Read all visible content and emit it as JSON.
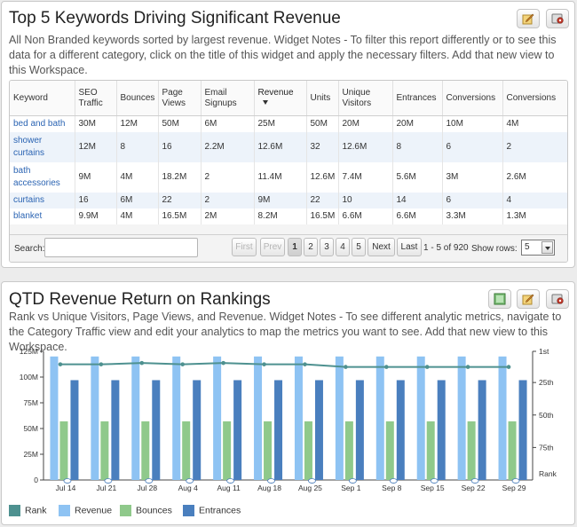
{
  "widget1": {
    "title": "Top 5 Keywords Driving Significant Revenue",
    "description": "All Non Branded keywords sorted by largest revenue. Widget Notes - To filter this report differently or to see this data for a different category, click on the title of this widget and apply the necessary filters. Add that new view to this Workspace.",
    "icons": [
      "edit-widget-icon",
      "settings-gear-icon"
    ],
    "columns": [
      "Keyword",
      "SEO Traffic",
      "Bounces",
      "Page Views",
      "Email Signups",
      "Revenue",
      "Units",
      "Unique Visitors",
      "Entrances",
      "Conversions",
      "Conversions"
    ],
    "sorted_column": "Revenue",
    "rows": [
      [
        "bed and bath",
        "30M",
        "12M",
        "50M",
        "6M",
        "25M",
        "50M",
        "20M",
        "20M",
        "10M",
        "4M"
      ],
      [
        "shower curtains",
        "12M",
        "8",
        "16",
        "2.2M",
        "12.6M",
        "32",
        "12.6M",
        "8",
        "6",
        "2"
      ],
      [
        "bath accessories",
        "9M",
        "4M",
        "18.2M",
        "2",
        "11.4M",
        "12.6M",
        "7.4M",
        "5.6M",
        "3M",
        "2.6M"
      ],
      [
        "curtains",
        "16",
        "6M",
        "22",
        "2",
        "9M",
        "22",
        "10",
        "14",
        "6",
        "4"
      ],
      [
        "blanket",
        "9.9M",
        "4M",
        "16.5M",
        "2M",
        "8.2M",
        "16.5M",
        "6.6M",
        "6.6M",
        "3.3M",
        "1.3M"
      ]
    ],
    "search_label": "Search:",
    "search_value": "",
    "pager": {
      "first": "First",
      "prev": "Prev",
      "pages": [
        "1",
        "2",
        "3",
        "4",
        "5"
      ],
      "current_page": "1",
      "next": "Next",
      "last": "Last",
      "info": "1 - 5 of 920",
      "show_rows_label": "Show rows:",
      "show_rows_value": "5"
    }
  },
  "widget2": {
    "title": "QTD Revenue Return on Rankings",
    "description": "Rank vs Unique Visitors, Page Views, and Revenue. Widget Notes - To see different analytic metrics, navigate to the Category Traffic view and edit your analytics to map the metrics you want to see. Add that new view to this Workspace.",
    "icons": [
      "chart-view-icon",
      "edit-widget-icon",
      "settings-gear-icon"
    ]
  },
  "chart_data": {
    "type": "bar",
    "categories": [
      "Jul 14",
      "Jul 21",
      "Jul 28",
      "Aug 4",
      "Aug 11",
      "Aug 18",
      "Aug 25",
      "Sep 1",
      "Sep 8",
      "Sep 15",
      "Sep 22",
      "Sep 29"
    ],
    "series": [
      {
        "name": "Revenue",
        "type": "bar",
        "axis": "left",
        "color": "#8ec3f3",
        "values": [
          120,
          120,
          120,
          120,
          120,
          120,
          120,
          120,
          120,
          120,
          120,
          120
        ]
      },
      {
        "name": "Bounces",
        "type": "bar",
        "axis": "left",
        "color": "#8fc98b",
        "values": [
          57,
          57,
          57,
          57,
          57,
          57,
          57,
          57,
          57,
          57,
          57,
          57
        ]
      },
      {
        "name": "Entrances",
        "type": "bar",
        "axis": "left",
        "color": "#4a7fbe",
        "values": [
          97,
          97,
          97,
          97,
          97,
          97,
          97,
          97,
          97,
          97,
          97,
          97
        ]
      },
      {
        "name": "Rank",
        "type": "line",
        "axis": "right",
        "color": "#4e9190",
        "values": [
          11,
          11,
          10,
          11,
          10,
          11,
          11,
          13,
          13,
          13,
          13,
          13
        ]
      }
    ],
    "left_axis": {
      "ticks": [
        "0",
        "25M",
        "50M",
        "75M",
        "100M",
        "125M"
      ],
      "ylim": [
        0,
        125
      ]
    },
    "right_axis": {
      "ticks": [
        "1st",
        "25th",
        "50th",
        "75th"
      ],
      "title": "Rank",
      "ylim": [
        1,
        100
      ],
      "inverted": true
    },
    "legend": [
      "Rank",
      "Revenue",
      "Bounces",
      "Entrances"
    ],
    "legend_position": "bottom-left",
    "grid": false
  }
}
